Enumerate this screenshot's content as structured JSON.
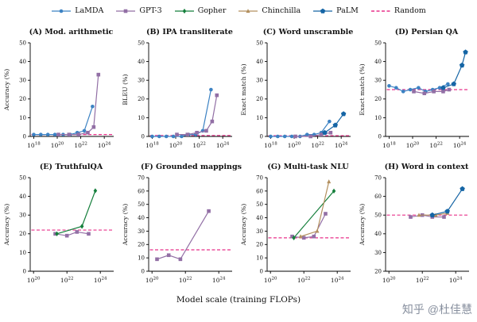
{
  "legend": {
    "items": [
      {
        "label": "LaMDA"
      },
      {
        "label": "GPT-3"
      },
      {
        "label": "Gopher"
      },
      {
        "label": "Chinchilla"
      },
      {
        "label": "PaLM"
      },
      {
        "label": "Random"
      }
    ]
  },
  "models": {
    "LaMDA": {
      "color": "#3c82c3",
      "marker": "circle"
    },
    "GPT-3": {
      "color": "#926fa5",
      "marker": "square"
    },
    "Gopher": {
      "color": "#157f3c",
      "marker": "diamond"
    },
    "Chinchilla": {
      "color": "#b3905f",
      "marker": "triangle"
    },
    "PaLM": {
      "color": "#1565a5",
      "marker": "pentagon"
    },
    "Random": {
      "color": "#e8308a",
      "dash": true
    }
  },
  "footer": {
    "xlabel": "Model scale (training FLOPs)"
  },
  "watermark": {
    "text": "知乎 @杜佳慧"
  },
  "chart_data": [
    {
      "id": "A",
      "type": "line",
      "title": "(A) Mod. arithmetic",
      "ylabel": "Accuracy (%)",
      "xlim": [
        17.7,
        24.8
      ],
      "ylim": [
        0,
        50
      ],
      "yticks": [
        0,
        10,
        20,
        30,
        40,
        50
      ],
      "xtick_exponents": [
        18,
        20,
        22,
        24
      ],
      "random_baseline": 1,
      "series": [
        {
          "name": "LaMDA",
          "x": [
            18.0,
            18.6,
            19.2,
            19.8,
            20.5,
            21.1,
            21.7,
            22.3,
            23.0
          ],
          "y": [
            1,
            1,
            1,
            1,
            1,
            1,
            2,
            3,
            16
          ]
        },
        {
          "name": "GPT-3",
          "x": [
            20.1,
            21.0,
            21.8,
            22.6,
            23.1,
            23.5
          ],
          "y": [
            1,
            1,
            1,
            2,
            5,
            33
          ]
        }
      ]
    },
    {
      "id": "B",
      "type": "line",
      "title": "(B) IPA transliterate",
      "ylabel": "BLEU (%)",
      "xlim": [
        17.7,
        24.8
      ],
      "ylim": [
        0,
        50
      ],
      "yticks": [
        0,
        10,
        20,
        30,
        40,
        50
      ],
      "xtick_exponents": [
        18,
        20,
        22,
        24
      ],
      "random_baseline": 0.5,
      "series": [
        {
          "name": "LaMDA",
          "x": [
            18.0,
            18.6,
            19.2,
            19.8,
            20.5,
            21.1,
            21.7,
            22.3,
            23.0
          ],
          "y": [
            0,
            0,
            0,
            0,
            0,
            1,
            1,
            3,
            25
          ]
        },
        {
          "name": "GPT-3",
          "x": [
            20.1,
            21.0,
            21.8,
            22.6,
            23.1,
            23.5
          ],
          "y": [
            1,
            1,
            2,
            3,
            8,
            22
          ]
        }
      ]
    },
    {
      "id": "C",
      "type": "line",
      "title": "(C) Word unscramble",
      "ylabel": "Exact match (%)",
      "xlim": [
        17.7,
        24.8
      ],
      "ylim": [
        0,
        50
      ],
      "yticks": [
        0,
        10,
        20,
        30,
        40,
        50
      ],
      "xtick_exponents": [
        18,
        20,
        22,
        24
      ],
      "random_baseline": 0.4,
      "series": [
        {
          "name": "LaMDA",
          "x": [
            18.0,
            18.6,
            19.2,
            19.8,
            20.5,
            21.1,
            21.7,
            22.3,
            23.0
          ],
          "y": [
            0,
            0,
            0,
            0,
            0,
            1,
            1,
            2,
            8
          ]
        },
        {
          "name": "GPT-3",
          "x": [
            20.1,
            21.4,
            22.3,
            23.1
          ],
          "y": [
            0,
            0,
            1,
            2
          ]
        },
        {
          "name": "PaLM",
          "x": [
            22.6,
            23.5,
            24.2
          ],
          "y": [
            2,
            6,
            12
          ]
        }
      ]
    },
    {
      "id": "D",
      "type": "line",
      "title": "(D) Persian QA",
      "ylabel": "Exact match (%)",
      "xlim": [
        17.7,
        24.8
      ],
      "ylim": [
        0,
        50
      ],
      "yticks": [
        0,
        10,
        20,
        30,
        40,
        50
      ],
      "xtick_exponents": [
        18,
        20,
        22,
        24
      ],
      "random_baseline": 25,
      "series": [
        {
          "name": "LaMDA",
          "x": [
            18.0,
            18.6,
            19.2,
            19.8,
            20.5,
            21.1,
            21.7,
            22.3,
            23.0
          ],
          "y": [
            27,
            26,
            24,
            25,
            26,
            24,
            25,
            26,
            28
          ]
        },
        {
          "name": "GPT-3",
          "x": [
            20.1,
            21.0,
            21.8,
            22.6,
            23.1
          ],
          "y": [
            24,
            23,
            24,
            24,
            25
          ]
        },
        {
          "name": "PaLM",
          "x": [
            22.6,
            23.5,
            24.2,
            24.5
          ],
          "y": [
            26,
            28,
            38,
            45
          ]
        }
      ]
    },
    {
      "id": "E",
      "type": "line",
      "title": "(E) TruthfulQA",
      "ylabel": "Accuracy (%)",
      "xlim": [
        19.8,
        24.8
      ],
      "ylim": [
        0,
        50
      ],
      "yticks": [
        0,
        10,
        20,
        30,
        40,
        50
      ],
      "xtick_exponents": [
        20,
        22,
        24
      ],
      "random_baseline": 22,
      "series": [
        {
          "name": "GPT-3",
          "x": [
            21.3,
            22.0,
            22.6,
            23.3
          ],
          "y": [
            20,
            19,
            21,
            20
          ]
        },
        {
          "name": "Gopher",
          "x": [
            21.4,
            22.9,
            23.7
          ],
          "y": [
            20,
            24,
            43
          ]
        }
      ]
    },
    {
      "id": "F",
      "type": "line",
      "title": "(F) Grounded mappings",
      "ylabel": "Accuracy (%)",
      "xlim": [
        19.8,
        24.8
      ],
      "ylim": [
        0,
        70
      ],
      "yticks": [
        0,
        10,
        20,
        30,
        40,
        50,
        60,
        70
      ],
      "xtick_exponents": [
        20,
        22,
        24
      ],
      "random_baseline": 16,
      "series": [
        {
          "name": "GPT-3",
          "x": [
            20.3,
            21.0,
            21.7,
            23.4
          ],
          "y": [
            9,
            12,
            9,
            45
          ]
        }
      ]
    },
    {
      "id": "G",
      "type": "line",
      "title": "(G) Multi-task NLU",
      "ylabel": "Accuracy (%)",
      "xlim": [
        19.8,
        24.8
      ],
      "ylim": [
        0,
        70
      ],
      "yticks": [
        0,
        10,
        20,
        30,
        40,
        50,
        60,
        70
      ],
      "xtick_exponents": [
        20,
        22,
        24
      ],
      "random_baseline": 25,
      "series": [
        {
          "name": "GPT-3",
          "x": [
            21.3,
            22.0,
            22.6,
            23.3
          ],
          "y": [
            26,
            25,
            26,
            43
          ]
        },
        {
          "name": "Gopher",
          "x": [
            21.4,
            23.8
          ],
          "y": [
            25,
            60
          ]
        },
        {
          "name": "Chinchilla",
          "x": [
            21.8,
            22.8,
            23.5
          ],
          "y": [
            26,
            30,
            67
          ]
        }
      ]
    },
    {
      "id": "H",
      "type": "line",
      "title": "(H) Word in context",
      "ylabel": "Accuracy (%)",
      "xlim": [
        19.8,
        24.8
      ],
      "ylim": [
        20,
        70
      ],
      "yticks": [
        20,
        30,
        40,
        50,
        60,
        70
      ],
      "xtick_exponents": [
        20,
        22,
        24
      ],
      "random_baseline": 50,
      "series": [
        {
          "name": "GPT-3",
          "x": [
            21.3,
            22.0,
            22.6,
            23.3
          ],
          "y": [
            49,
            50,
            49,
            49
          ]
        },
        {
          "name": "Chinchilla",
          "x": [
            21.8,
            22.8,
            23.5
          ],
          "y": [
            50,
            50,
            51
          ]
        },
        {
          "name": "PaLM",
          "x": [
            22.6,
            23.5,
            24.4
          ],
          "y": [
            50,
            52,
            64
          ]
        }
      ]
    }
  ]
}
